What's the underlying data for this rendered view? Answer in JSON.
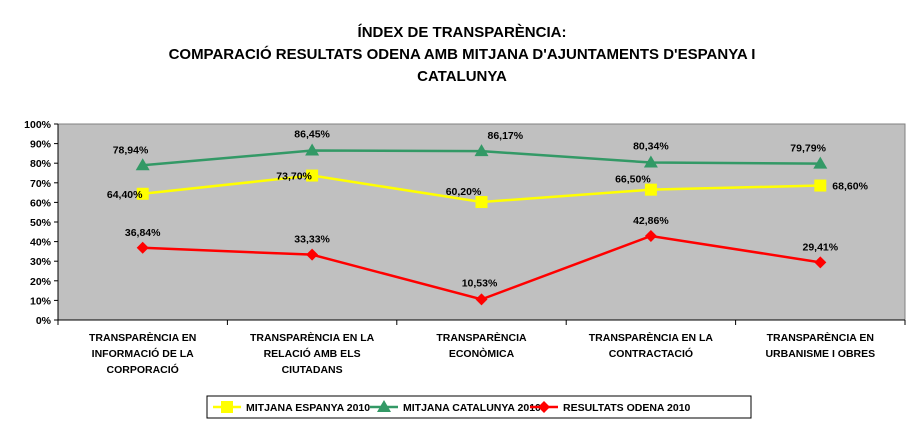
{
  "chart_data": {
    "type": "line",
    "title_lines": [
      "ÍNDEX DE TRANSPARÈNCIA:",
      "COMPARACIÓ RESULTATS ODENA AMB MITJANA D'AJUNTAMENTS D'ESPANYA I",
      "CATALUNYA"
    ],
    "categories": [
      [
        "TRANSPARÈNCIA EN",
        "INFORMACIÓ DE LA",
        "CORPORACIÓ"
      ],
      [
        "TRANSPARÈNCIA EN LA",
        "RELACIÓ AMB ELS",
        "CIUTADANS"
      ],
      [
        "TRANSPARÈNCIA",
        "ECONÒMICA"
      ],
      [
        "TRANSPARÈNCIA EN LA",
        "CONTRACTACIÓ"
      ],
      [
        "TRANSPARÈNCIA EN",
        "URBANISME I OBRES"
      ]
    ],
    "ylim": [
      0,
      100
    ],
    "yticks": [
      "0%",
      "10%",
      "20%",
      "30%",
      "40%",
      "50%",
      "60%",
      "70%",
      "80%",
      "90%",
      "100%"
    ],
    "grid": false,
    "legend_position": "bottom",
    "plot_background": "#c0c0c0",
    "series": [
      {
        "name": "MITJANA ESPANYA 2010",
        "color": "#ffff00",
        "marker": "square",
        "values": [
          64.4,
          73.7,
          60.2,
          66.5,
          68.6
        ],
        "labels": [
          "64,40%",
          "73,70%",
          "60,20%",
          "66,50%",
          "68,60%"
        ]
      },
      {
        "name": "MITJANA CATALUNYA 2010",
        "color": "#339966",
        "marker": "triangle",
        "values": [
          78.94,
          86.45,
          86.17,
          80.34,
          79.79
        ],
        "labels": [
          "78,94%",
          "86,45%",
          "86,17%",
          "80,34%",
          "79,79%"
        ]
      },
      {
        "name": "RESULTATS ODENA 2010",
        "color": "#ff0000",
        "marker": "diamond",
        "values": [
          36.84,
          33.33,
          10.53,
          42.86,
          29.41
        ],
        "labels": [
          "36,84%",
          "33,33%",
          "10,53%",
          "42,86%",
          "29,41%"
        ]
      }
    ]
  }
}
